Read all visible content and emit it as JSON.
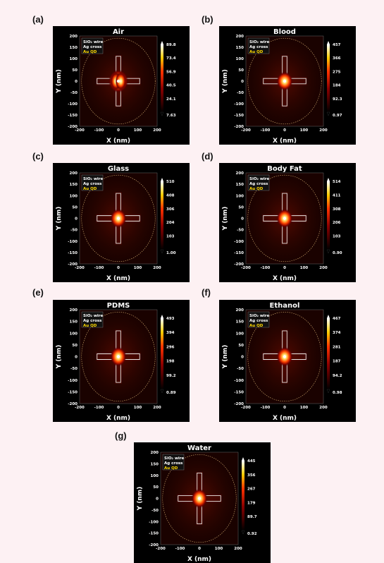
{
  "legend_labels": [
    "SiO₂ wire",
    "Ag cross",
    "Au QD"
  ],
  "chart_data": [
    {
      "type": "heatmap",
      "panel_label": "(a)",
      "title": "Air",
      "xlabel": "X (nm)",
      "ylabel": "Y (nm)",
      "xlim": [
        -200,
        200
      ],
      "ylim": [
        -200,
        200
      ],
      "xticks": [
        "-200",
        "-100",
        "0",
        "100",
        "200"
      ],
      "yticks": [
        "200",
        "150",
        "100",
        "50",
        "0",
        "-50",
        "-100",
        "-150",
        "-200"
      ],
      "colorbar_ticks": [
        "89.8",
        "73.4",
        "56.9",
        "40.5",
        "24.1",
        "7.63"
      ],
      "colorbar_range": [
        7.63,
        89.8
      ]
    },
    {
      "type": "heatmap",
      "panel_label": "(b)",
      "title": "Blood",
      "xlabel": "X (nm)",
      "ylabel": "Y (nm)",
      "xlim": [
        -200,
        200
      ],
      "ylim": [
        -200,
        200
      ],
      "xticks": [
        "-200",
        "-100",
        "0",
        "100",
        "200"
      ],
      "yticks": [
        "200",
        "150",
        "100",
        "50",
        "0",
        "-50",
        "-100",
        "-150",
        "-200"
      ],
      "colorbar_ticks": [
        "457",
        "366",
        "275",
        "184",
        "92.3",
        "0.97"
      ],
      "colorbar_range": [
        0.97,
        457
      ]
    },
    {
      "type": "heatmap",
      "panel_label": "(c)",
      "title": "Glass",
      "xlabel": "X (nm)",
      "ylabel": "Y (nm)",
      "xlim": [
        -200,
        200
      ],
      "ylim": [
        -200,
        200
      ],
      "xticks": [
        "-200",
        "-100",
        "0",
        "100",
        "200"
      ],
      "yticks": [
        "200",
        "150",
        "100",
        "50",
        "0",
        "-50",
        "-100",
        "-150",
        "-200"
      ],
      "colorbar_ticks": [
        "510",
        "408",
        "306",
        "204",
        "103",
        "1.00"
      ],
      "colorbar_range": [
        1.0,
        510
      ]
    },
    {
      "type": "heatmap",
      "panel_label": "(d)",
      "title": "Body Fat",
      "xlabel": "X (nm)",
      "ylabel": "Y (nm)",
      "xlim": [
        -200,
        200
      ],
      "ylim": [
        -200,
        200
      ],
      "xticks": [
        "-200",
        "-100",
        "0",
        "100",
        "200"
      ],
      "yticks": [
        "200",
        "150",
        "100",
        "50",
        "0",
        "-50",
        "-100",
        "-150",
        "-200"
      ],
      "colorbar_ticks": [
        "514",
        "411",
        "308",
        "206",
        "103",
        "0.90"
      ],
      "colorbar_range": [
        0.9,
        514
      ]
    },
    {
      "type": "heatmap",
      "panel_label": "(e)",
      "title": "PDMS",
      "xlabel": "X (nm)",
      "ylabel": "Y (nm)",
      "xlim": [
        -200,
        200
      ],
      "ylim": [
        -200,
        200
      ],
      "xticks": [
        "-200",
        "-100",
        "0",
        "100",
        "200"
      ],
      "yticks": [
        "200",
        "150",
        "100",
        "50",
        "0",
        "-50",
        "-100",
        "-150",
        "-200"
      ],
      "colorbar_ticks": [
        "493",
        "394",
        "296",
        "198",
        "99.2",
        "0.89"
      ],
      "colorbar_range": [
        0.89,
        493
      ]
    },
    {
      "type": "heatmap",
      "panel_label": "(f)",
      "title": "Ethanol",
      "xlabel": "X (nm)",
      "ylabel": "Y (nm)",
      "xlim": [
        -200,
        200
      ],
      "ylim": [
        -200,
        200
      ],
      "xticks": [
        "-200",
        "-100",
        "0",
        "100",
        "200"
      ],
      "yticks": [
        "200",
        "150",
        "100",
        "50",
        "0",
        "-50",
        "-100",
        "-150",
        "-200"
      ],
      "colorbar_ticks": [
        "467",
        "374",
        "281",
        "187",
        "94.2",
        "0.98"
      ],
      "colorbar_range": [
        0.98,
        467
      ]
    },
    {
      "type": "heatmap",
      "panel_label": "(g)",
      "title": "Water",
      "xlabel": "X (nm)",
      "ylabel": "Y (nm)",
      "xlim": [
        -200,
        200
      ],
      "ylim": [
        -200,
        200
      ],
      "xticks": [
        "-200",
        "-100",
        "0",
        "100",
        "200"
      ],
      "yticks": [
        "200",
        "150",
        "100",
        "50",
        "0",
        "-50",
        "-100",
        "-150",
        "-200"
      ],
      "colorbar_ticks": [
        "445",
        "356",
        "267",
        "179",
        "89.7",
        "0.92"
      ],
      "colorbar_range": [
        0.92,
        445
      ]
    }
  ]
}
